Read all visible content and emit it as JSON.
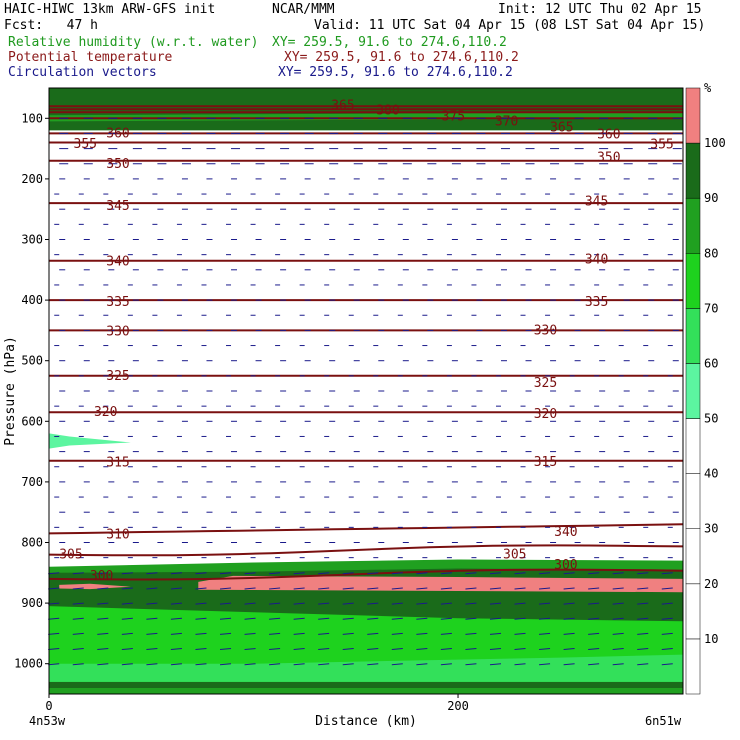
{
  "header": {
    "model": "HAIC-HIWC 13km ARW-GFS init",
    "org": "NCAR/MMM",
    "init": "Init: 12 UTC Thu 02 Apr 15",
    "fcst": "Fcst:   47 h",
    "valid": "Valid: 11 UTC Sat 04 Apr 15 (08 LST Sat 04 Apr 15)",
    "fields": [
      {
        "name": "Relative humidity (w.r.t. water)",
        "xy": "XY= 259.5, 91.6 to 274.6,110.2",
        "color": "#1f9a1f"
      },
      {
        "name": "Potential temperature",
        "xy": "XY= 259.5, 91.6 to 274.6,110.2",
        "color": "#8b1a1a"
      },
      {
        "name": "Circulation vectors",
        "xy": "XY= 259.5, 91.6 to 274.6,110.2",
        "color": "#1a1a8b"
      }
    ]
  },
  "chart_data": {
    "type": "heatmap",
    "xlabel": "Distance (km)",
    "ylabel": "Pressure (hPa)",
    "xlim": [
      0,
      310
    ],
    "ylim": [
      1050,
      50
    ],
    "x_ticks": [
      0,
      200
    ],
    "x_end_labels": [
      "4n53w",
      "6n51w"
    ],
    "y_ticks": [
      100,
      200,
      300,
      400,
      500,
      600,
      700,
      800,
      900,
      1000
    ],
    "colorbar": {
      "unit": "%",
      "levels": [
        10,
        20,
        30,
        40,
        50,
        60,
        70,
        80,
        90,
        100
      ],
      "colors": [
        "#ffffff",
        "#ffffff",
        "#ffffff",
        "#ffffff",
        "#ffffff",
        "#5cf5a0",
        "#33e05a",
        "#1ed21e",
        "#20a020",
        "#1a6b1a",
        "#f08080"
      ]
    },
    "rh_regions": [
      {
        "level": ">100",
        "color": "#f08080",
        "description": "surface-layer band 860-880 hPa"
      },
      {
        "level": "90-100",
        "color": "#1a6b1a"
      },
      {
        "level": "80-90",
        "color": "#20a020"
      },
      {
        "level": "70-80",
        "color": "#1ed21e"
      },
      {
        "level": "60-70",
        "color": "#33e05a"
      },
      {
        "level": "50-60",
        "color": "#5cf5a0"
      }
    ],
    "theta_contours": [
      {
        "value": 300,
        "label_x": 30,
        "p": 860
      },
      {
        "value": 305,
        "label_x": 5,
        "p": 820
      },
      {
        "value": 310,
        "label_x": 25,
        "p": 785
      },
      {
        "value": 315,
        "label_x": 25,
        "p": 665
      },
      {
        "value": 320,
        "label_x": 20,
        "p": 585
      },
      {
        "value": 325,
        "label_x": 25,
        "p": 525
      },
      {
        "value": 330,
        "label_x": 25,
        "p": 450
      },
      {
        "value": 335,
        "label_x": 25,
        "p": 400
      },
      {
        "value": 340,
        "label_x": 25,
        "p": 335
      },
      {
        "value": 345,
        "label_x": 25,
        "p": 240
      },
      {
        "value": 350,
        "label_x": 25,
        "p": 170
      },
      {
        "value": 355,
        "label_x": 15,
        "p": 140
      },
      {
        "value": 360,
        "label_x": 25,
        "p": 125
      },
      {
        "value": 365,
        "label_x": 140,
        "p": 80
      },
      {
        "value": 370,
        "label_x": 220,
        "p": 100
      },
      {
        "value": 375,
        "label_x": 195,
        "p": 90
      },
      {
        "value": 380,
        "label_x": 160,
        "p": 85
      }
    ],
    "contour_labels": [
      {
        "text": "300",
        "x": 20,
        "p": 855
      },
      {
        "text": "305",
        "x": 5,
        "p": 820
      },
      {
        "text": "310",
        "x": 28,
        "p": 787
      },
      {
        "text": "315",
        "x": 28,
        "p": 668
      },
      {
        "text": "320",
        "x": 22,
        "p": 585
      },
      {
        "text": "325",
        "x": 28,
        "p": 525
      },
      {
        "text": "330",
        "x": 28,
        "p": 452
      },
      {
        "text": "335",
        "x": 28,
        "p": 403
      },
      {
        "text": "340",
        "x": 28,
        "p": 336
      },
      {
        "text": "345",
        "x": 28,
        "p": 245
      },
      {
        "text": "350",
        "x": 28,
        "p": 175
      },
      {
        "text": "355",
        "x": 12,
        "p": 142
      },
      {
        "text": "360",
        "x": 28,
        "p": 125
      },
      {
        "text": "365",
        "x": 138,
        "p": 79
      },
      {
        "text": "380",
        "x": 160,
        "p": 87
      },
      {
        "text": "375",
        "x": 192,
        "p": 97
      },
      {
        "text": "370",
        "x": 218,
        "p": 105
      },
      {
        "text": "365",
        "x": 245,
        "p": 115
      },
      {
        "text": "360",
        "x": 268,
        "p": 127
      },
      {
        "text": "355",
        "x": 294,
        "p": 143
      },
      {
        "text": "350",
        "x": 268,
        "p": 165
      },
      {
        "text": "345",
        "x": 262,
        "p": 237
      },
      {
        "text": "340",
        "x": 262,
        "p": 333
      },
      {
        "text": "335",
        "x": 262,
        "p": 403
      },
      {
        "text": "330",
        "x": 237,
        "p": 450
      },
      {
        "text": "325",
        "x": 237,
        "p": 537
      },
      {
        "text": "320",
        "x": 237,
        "p": 588
      },
      {
        "text": "315",
        "x": 237,
        "p": 667
      },
      {
        "text": "340",
        "x": 247,
        "p": 783
      },
      {
        "text": "305",
        "x": 222,
        "p": 820
      },
      {
        "text": "300",
        "x": 247,
        "p": 837
      }
    ]
  }
}
